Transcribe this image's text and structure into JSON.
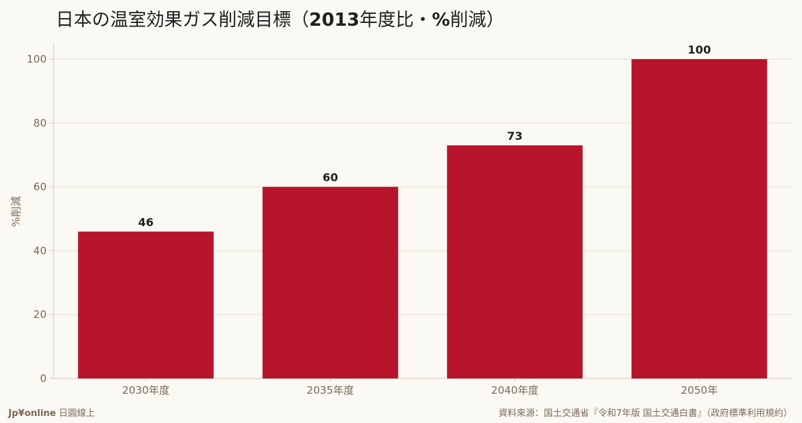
{
  "title": {
    "part1": "日本の温室効果ガス削減目標（",
    "part2": "2013",
    "part3": "年度比・",
    "part4": "%",
    "part5": "削減）"
  },
  "chart_data": {
    "type": "bar",
    "categories": [
      "2030年度",
      "2035年度",
      "2040年度",
      "2050年"
    ],
    "values": [
      46,
      60,
      73,
      100
    ],
    "data_labels": [
      "46",
      "60",
      "73",
      "100"
    ],
    "ylabel": "%削減",
    "xlabel": "",
    "ylim": [
      0,
      105
    ],
    "yticks": [
      0,
      20,
      40,
      60,
      80,
      100
    ],
    "grid": true,
    "legend": "none",
    "bar_color": "#b8142b"
  },
  "footer": {
    "brand": "Jp¥online",
    "brand_sub": "日圓線上",
    "source": "資料來源：国土交通省『令和7年版 国土交通白書』（政府標準利用規約）"
  },
  "colors": {
    "background": "#fbf9f4",
    "grid": "#e3ded3",
    "axis": "#cfc9bd",
    "text_muted": "#7a6a55"
  }
}
